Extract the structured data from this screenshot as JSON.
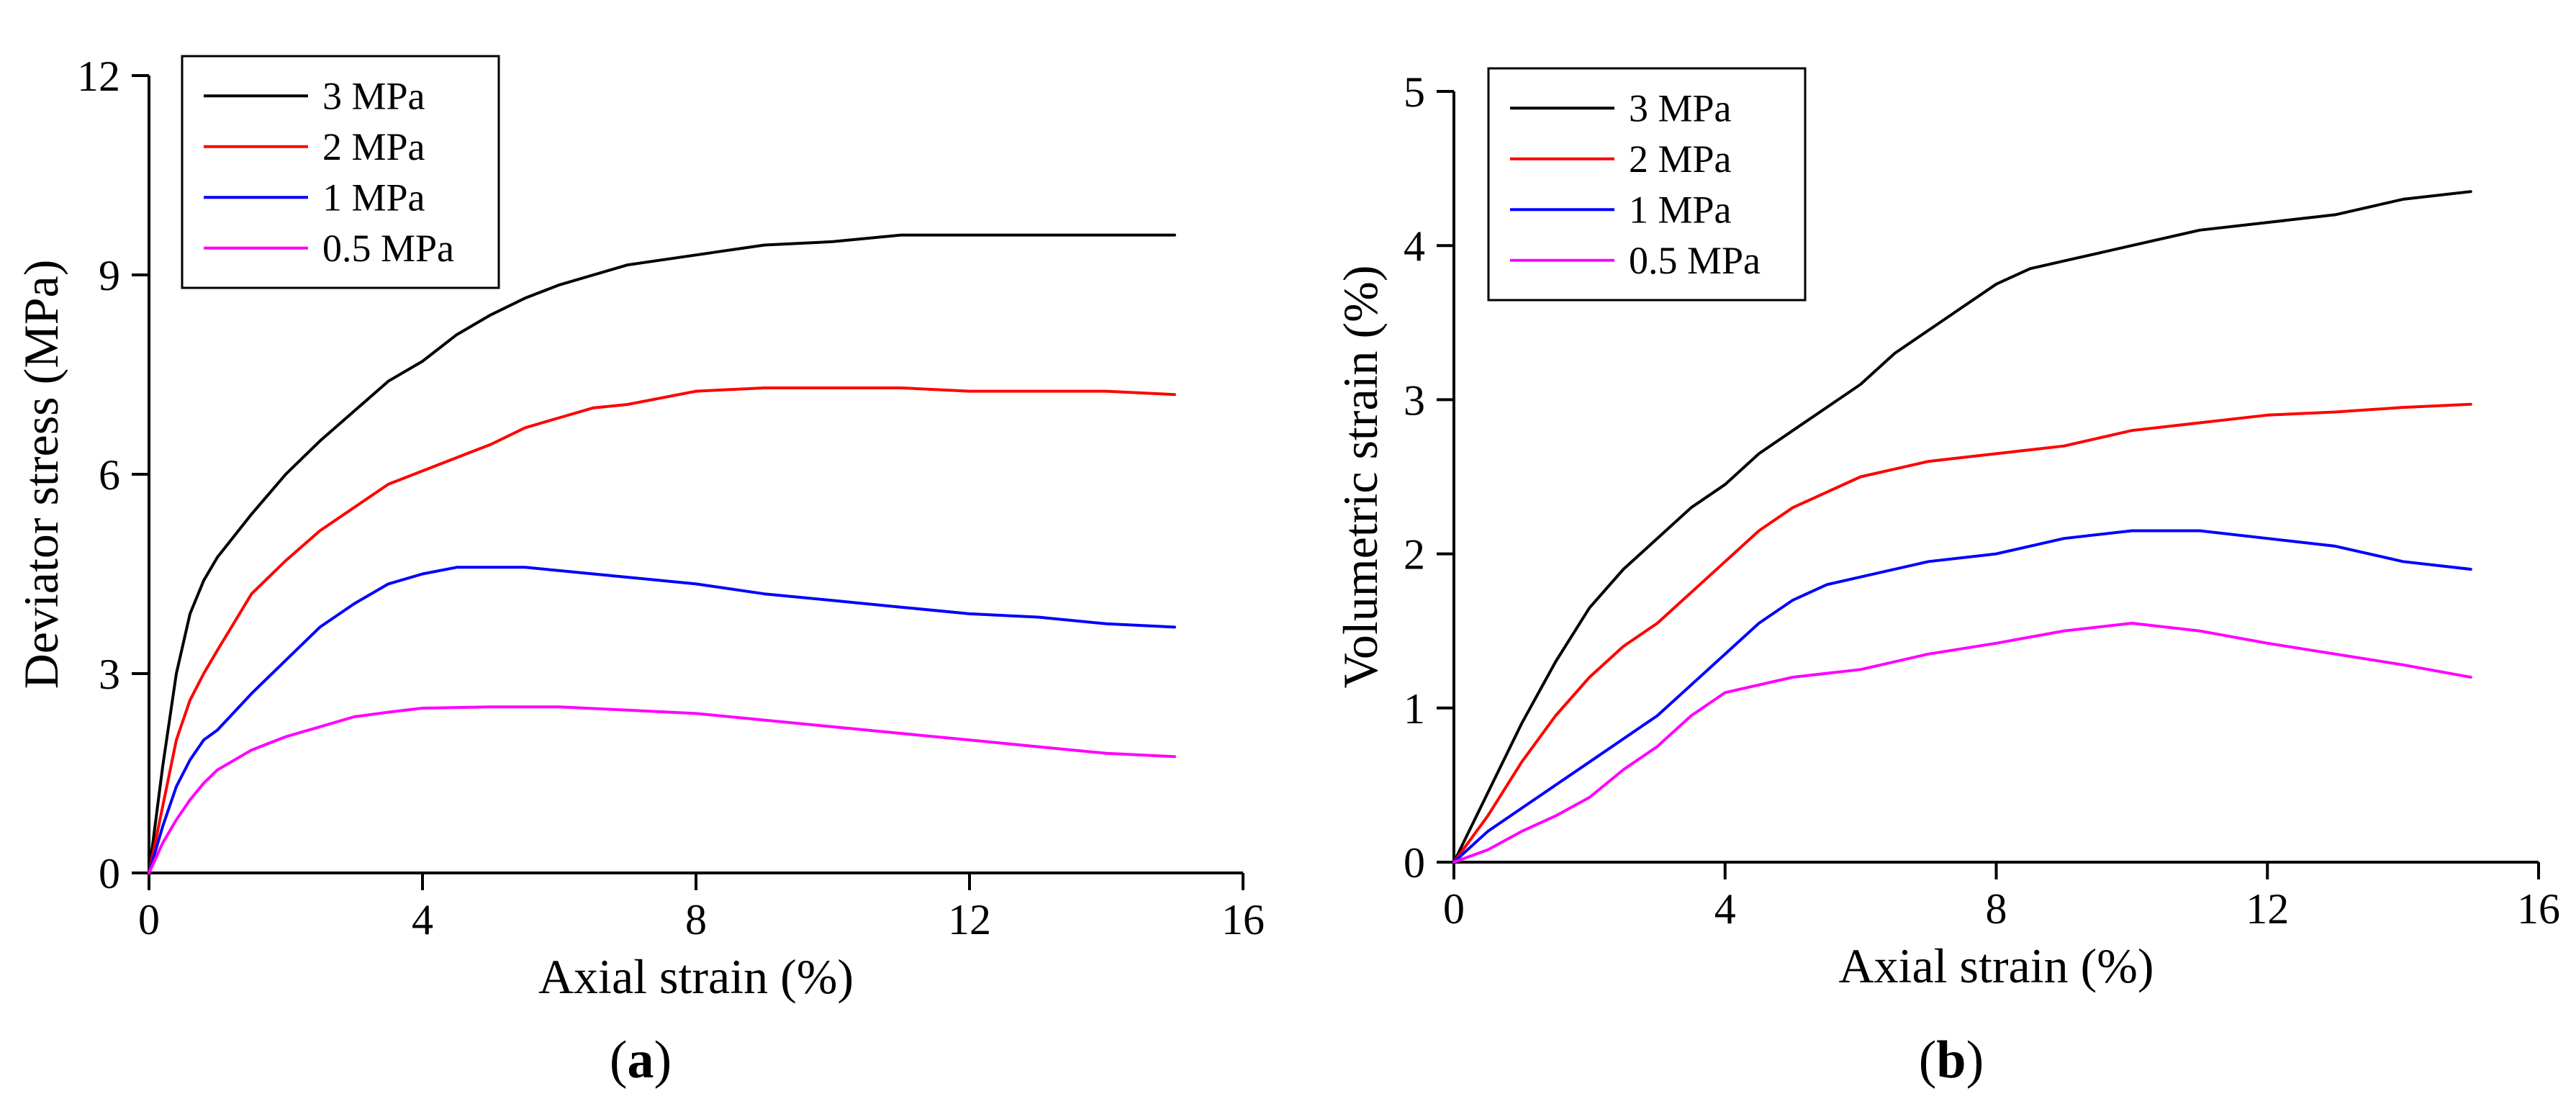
{
  "figure": {
    "panel_a_label_open": "(",
    "panel_a_label_letter": "a",
    "panel_a_label_close": ")",
    "panel_b_label_open": "(",
    "panel_b_label_letter": "b",
    "panel_b_label_close": ")"
  },
  "chart_data": [
    {
      "id": "a",
      "type": "line",
      "xlabel": "Axial strain (%)",
      "ylabel": "Deviator stress (MPa)",
      "xlim": [
        0,
        16
      ],
      "ylim": [
        0,
        12
      ],
      "xticks": [
        0,
        4,
        8,
        12,
        16
      ],
      "yticks": [
        0,
        3,
        6,
        9,
        12
      ],
      "xtick_labels": [
        "0",
        "4",
        "8",
        "12",
        "16"
      ],
      "ytick_labels": [
        "0",
        "3",
        "6",
        "9",
        "12"
      ],
      "grid": false,
      "legend_position": "top-left",
      "series": [
        {
          "name": "3 MPa",
          "color": "#000000",
          "points": [
            [
              0,
              0
            ],
            [
              0.2,
              1.6
            ],
            [
              0.4,
              3.0
            ],
            [
              0.6,
              3.9
            ],
            [
              0.8,
              4.4
            ],
            [
              1,
              4.75
            ],
            [
              1.5,
              5.4
            ],
            [
              2,
              6.0
            ],
            [
              2.5,
              6.5
            ],
            [
              3,
              6.95
            ],
            [
              3.5,
              7.4
            ],
            [
              4,
              7.7
            ],
            [
              4.5,
              8.1
            ],
            [
              5,
              8.4
            ],
            [
              5.5,
              8.65
            ],
            [
              6,
              8.85
            ],
            [
              6.5,
              9.0
            ],
            [
              7,
              9.15
            ],
            [
              8,
              9.3
            ],
            [
              9,
              9.45
            ],
            [
              10,
              9.5
            ],
            [
              11,
              9.6
            ],
            [
              12,
              9.6
            ],
            [
              13,
              9.6
            ],
            [
              14,
              9.6
            ],
            [
              15,
              9.6
            ]
          ]
        },
        {
          "name": "2 MPa",
          "color": "#ff0000",
          "points": [
            [
              0,
              0
            ],
            [
              0.2,
              1.0
            ],
            [
              0.4,
              2.0
            ],
            [
              0.6,
              2.6
            ],
            [
              0.8,
              3.0
            ],
            [
              1,
              3.35
            ],
            [
              1.5,
              4.2
            ],
            [
              2,
              4.7
            ],
            [
              2.5,
              5.15
            ],
            [
              3,
              5.5
            ],
            [
              3.5,
              5.85
            ],
            [
              4,
              6.05
            ],
            [
              4.5,
              6.25
            ],
            [
              5,
              6.45
            ],
            [
              5.5,
              6.7
            ],
            [
              6,
              6.85
            ],
            [
              6.5,
              7.0
            ],
            [
              7,
              7.05
            ],
            [
              7.5,
              7.15
            ],
            [
              8,
              7.25
            ],
            [
              9,
              7.3
            ],
            [
              10,
              7.3
            ],
            [
              11,
              7.3
            ],
            [
              12,
              7.25
            ],
            [
              13,
              7.25
            ],
            [
              14,
              7.25
            ],
            [
              15,
              7.2
            ]
          ]
        },
        {
          "name": "1 MPa",
          "color": "#0000ff",
          "points": [
            [
              0,
              0
            ],
            [
              0.2,
              0.7
            ],
            [
              0.4,
              1.3
            ],
            [
              0.6,
              1.7
            ],
            [
              0.8,
              2.0
            ],
            [
              1,
              2.15
            ],
            [
              1.5,
              2.7
            ],
            [
              2,
              3.2
            ],
            [
              2.5,
              3.7
            ],
            [
              3,
              4.05
            ],
            [
              3.5,
              4.35
            ],
            [
              4,
              4.5
            ],
            [
              4.5,
              4.6
            ],
            [
              5,
              4.6
            ],
            [
              5.5,
              4.6
            ],
            [
              6,
              4.55
            ],
            [
              7,
              4.45
            ],
            [
              8,
              4.35
            ],
            [
              9,
              4.2
            ],
            [
              10,
              4.1
            ],
            [
              11,
              4.0
            ],
            [
              12,
              3.9
            ],
            [
              13,
              3.85
            ],
            [
              14,
              3.75
            ],
            [
              15,
              3.7
            ]
          ]
        },
        {
          "name": "0.5 MPa",
          "color": "#ff00ff",
          "points": [
            [
              0,
              0
            ],
            [
              0.2,
              0.45
            ],
            [
              0.4,
              0.8
            ],
            [
              0.6,
              1.1
            ],
            [
              0.8,
              1.35
            ],
            [
              1,
              1.55
            ],
            [
              1.5,
              1.85
            ],
            [
              2,
              2.05
            ],
            [
              2.5,
              2.2
            ],
            [
              3,
              2.35
            ],
            [
              3.5,
              2.42
            ],
            [
              4,
              2.48
            ],
            [
              5,
              2.5
            ],
            [
              6,
              2.5
            ],
            [
              7,
              2.45
            ],
            [
              8,
              2.4
            ],
            [
              9,
              2.3
            ],
            [
              10,
              2.2
            ],
            [
              11,
              2.1
            ],
            [
              12,
              2.0
            ],
            [
              13,
              1.9
            ],
            [
              14,
              1.8
            ],
            [
              15,
              1.75
            ]
          ]
        }
      ]
    },
    {
      "id": "b",
      "type": "line",
      "xlabel": "Axial strain (%)",
      "ylabel": "Volumetric strain (%)",
      "xlim": [
        0,
        16
      ],
      "ylim": [
        0,
        5
      ],
      "xticks": [
        0,
        4,
        8,
        12,
        16
      ],
      "yticks": [
        0,
        1,
        2,
        3,
        4,
        5
      ],
      "xtick_labels": [
        "0",
        "4",
        "8",
        "12",
        "16"
      ],
      "ytick_labels": [
        "0",
        "1",
        "2",
        "3",
        "4",
        "5"
      ],
      "grid": false,
      "legend_position": "top-left",
      "series": [
        {
          "name": "3 MPa",
          "color": "#000000",
          "points": [
            [
              0,
              0
            ],
            [
              0.5,
              0.45
            ],
            [
              1,
              0.9
            ],
            [
              1.5,
              1.3
            ],
            [
              2,
              1.65
            ],
            [
              2.5,
              1.9
            ],
            [
              3,
              2.1
            ],
            [
              3.5,
              2.3
            ],
            [
              4,
              2.45
            ],
            [
              4.5,
              2.65
            ],
            [
              5,
              2.8
            ],
            [
              5.5,
              2.95
            ],
            [
              6,
              3.1
            ],
            [
              6.5,
              3.3
            ],
            [
              7,
              3.45
            ],
            [
              7.5,
              3.6
            ],
            [
              8,
              3.75
            ],
            [
              8.5,
              3.85
            ],
            [
              9,
              3.9
            ],
            [
              9.5,
              3.95
            ],
            [
              10,
              4.0
            ],
            [
              11,
              4.1
            ],
            [
              12,
              4.15
            ],
            [
              13,
              4.2
            ],
            [
              14,
              4.3
            ],
            [
              15,
              4.35
            ]
          ]
        },
        {
          "name": "2 MPa",
          "color": "#ff0000",
          "points": [
            [
              0,
              0
            ],
            [
              0.5,
              0.3
            ],
            [
              1,
              0.65
            ],
            [
              1.5,
              0.95
            ],
            [
              2,
              1.2
            ],
            [
              2.5,
              1.4
            ],
            [
              3,
              1.55
            ],
            [
              3.5,
              1.75
            ],
            [
              4,
              1.95
            ],
            [
              4.5,
              2.15
            ],
            [
              5,
              2.3
            ],
            [
              5.5,
              2.4
            ],
            [
              6,
              2.5
            ],
            [
              6.5,
              2.55
            ],
            [
              7,
              2.6
            ],
            [
              8,
              2.65
            ],
            [
              9,
              2.7
            ],
            [
              10,
              2.8
            ],
            [
              11,
              2.85
            ],
            [
              12,
              2.9
            ],
            [
              13,
              2.92
            ],
            [
              14,
              2.95
            ],
            [
              15,
              2.97
            ]
          ]
        },
        {
          "name": "1 MPa",
          "color": "#0000ff",
          "points": [
            [
              0,
              0
            ],
            [
              0.5,
              0.2
            ],
            [
              1,
              0.35
            ],
            [
              1.5,
              0.5
            ],
            [
              2,
              0.65
            ],
            [
              2.5,
              0.8
            ],
            [
              3,
              0.95
            ],
            [
              3.5,
              1.15
            ],
            [
              4,
              1.35
            ],
            [
              4.5,
              1.55
            ],
            [
              5,
              1.7
            ],
            [
              5.5,
              1.8
            ],
            [
              6,
              1.85
            ],
            [
              7,
              1.95
            ],
            [
              8,
              2.0
            ],
            [
              9,
              2.1
            ],
            [
              10,
              2.15
            ],
            [
              11,
              2.15
            ],
            [
              12,
              2.1
            ],
            [
              13,
              2.05
            ],
            [
              14,
              1.95
            ],
            [
              15,
              1.9
            ]
          ]
        },
        {
          "name": "0.5 MPa",
          "color": "#ff00ff",
          "points": [
            [
              0,
              0
            ],
            [
              0.5,
              0.08
            ],
            [
              1,
              0.2
            ],
            [
              1.5,
              0.3
            ],
            [
              2,
              0.42
            ],
            [
              2.5,
              0.6
            ],
            [
              3,
              0.75
            ],
            [
              3.5,
              0.95
            ],
            [
              4,
              1.1
            ],
            [
              4.5,
              1.15
            ],
            [
              5,
              1.2
            ],
            [
              6,
              1.25
            ],
            [
              7,
              1.35
            ],
            [
              8,
              1.42
            ],
            [
              9,
              1.5
            ],
            [
              10,
              1.55
            ],
            [
              11,
              1.5
            ],
            [
              12,
              1.42
            ],
            [
              13,
              1.35
            ],
            [
              14,
              1.28
            ],
            [
              15,
              1.2
            ]
          ]
        }
      ]
    }
  ]
}
